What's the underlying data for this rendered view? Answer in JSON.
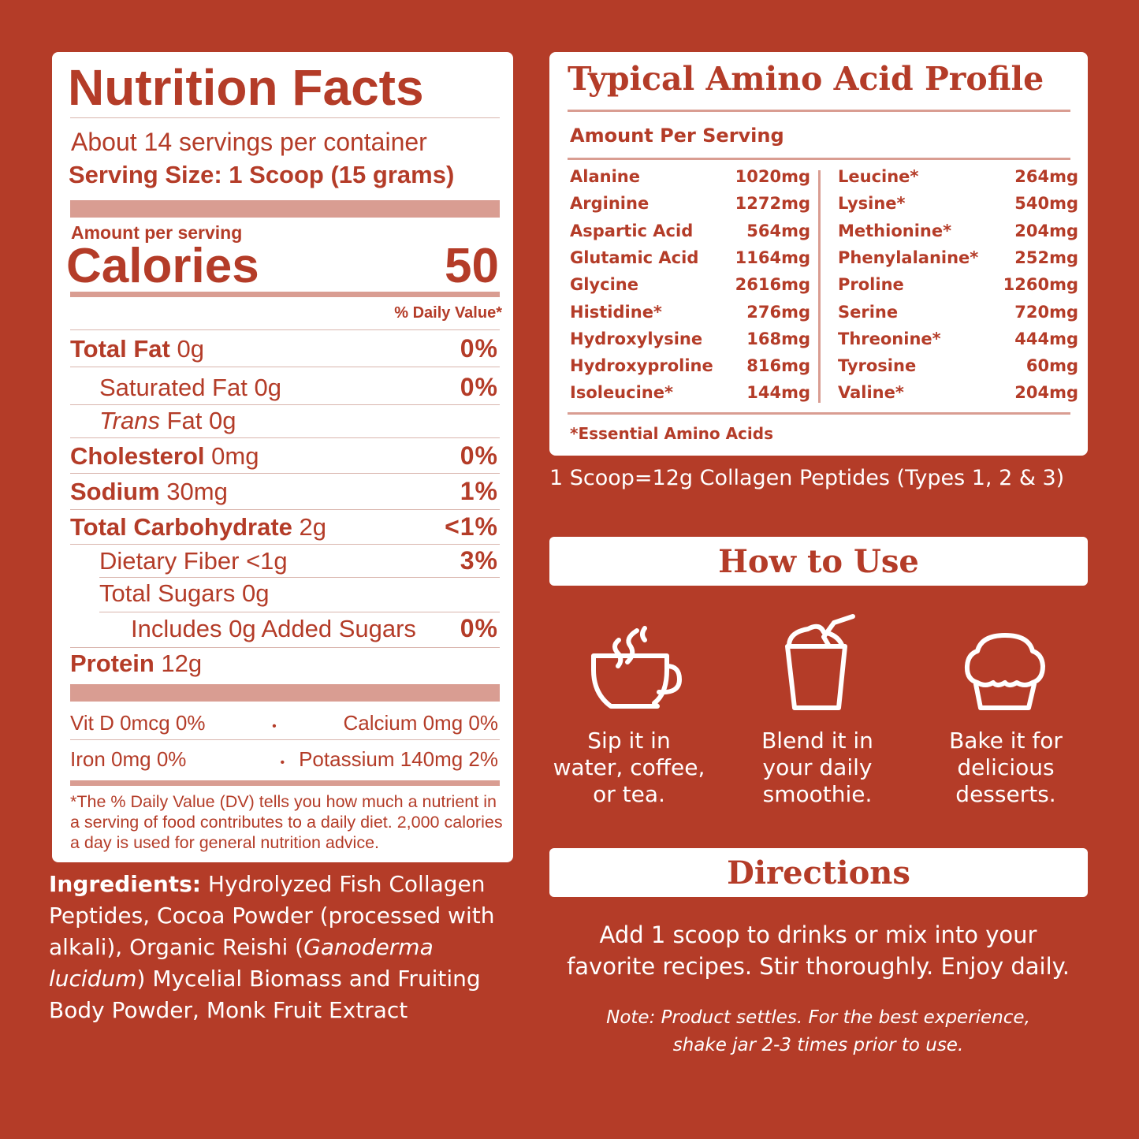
{
  "nutrition": {
    "title": "Nutrition Facts",
    "servings": "About 14 servings per container",
    "serving_size": "Serving Size: 1 Scoop (15 grams)",
    "amount_per_serving": "Amount per serving",
    "calories_label": "Calories",
    "calories_value": "50",
    "dv_header": "% Daily Value*",
    "rows": [
      {
        "label": "Total Fat",
        "amount": "0g",
        "dv": "0%"
      },
      {
        "label": "Saturated Fat",
        "amount": "0g",
        "dv": "0%"
      },
      {
        "label": "Trans",
        "label2": "Fat",
        "amount": "0g",
        "dv": ""
      },
      {
        "label": "Cholesterol",
        "amount": "0mg",
        "dv": "0%"
      },
      {
        "label": "Sodium",
        "amount": "30mg",
        "dv": "1%"
      },
      {
        "label": "Total Carbohydrate",
        "amount": "2g",
        "dv": "<1%"
      },
      {
        "label": "Dietary Fiber",
        "amount": "<1g",
        "dv": "3%"
      },
      {
        "label": "Total Sugars",
        "amount": "0g",
        "dv": ""
      },
      {
        "label": "Includes 0g Added Sugars",
        "amount": "",
        "dv": "0%"
      },
      {
        "label": "Protein",
        "amount": "12g",
        "dv": ""
      }
    ],
    "vitamins": [
      [
        "Vit D 0mcg 0%",
        "Calcium 0mg 0%"
      ],
      [
        "Iron 0mg 0%",
        "Potassium 140mg 2%"
      ]
    ],
    "bullet": "•",
    "footnote": "*The % Daily Value (DV) tells you how much a nutrient in a serving of food contributes to a daily diet. 2,000 calories a day is used for general nutrition advice."
  },
  "ingredients": {
    "label": "Ingredients:",
    "text1": " Hydrolyzed Fish Collagen Peptides, Cocoa Powder (processed with alkali), Organic Reishi (",
    "italic": "Ganoderma lucidum",
    "text2": ") Mycelial Biomass and Fruiting Body Powder, Monk Fruit Extract"
  },
  "amino": {
    "title": "Typical Amino Acid Profile",
    "subtitle": "Amount Per Serving",
    "left": [
      [
        "Alanine",
        "1020mg"
      ],
      [
        "Arginine",
        "1272mg"
      ],
      [
        "Aspartic Acid",
        "564mg"
      ],
      [
        "Glutamic Acid",
        "1164mg"
      ],
      [
        "Glycine",
        "2616mg"
      ],
      [
        "Histidine*",
        "276mg"
      ],
      [
        "Hydroxylysine",
        "168mg"
      ],
      [
        "Hydroxyproline",
        "816mg"
      ],
      [
        "Isoleucine*",
        "144mg"
      ]
    ],
    "right": [
      [
        "Leucine*",
        "264mg"
      ],
      [
        "Lysine*",
        "540mg"
      ],
      [
        "Methionine*",
        "204mg"
      ],
      [
        "Phenylalanine*",
        "252mg"
      ],
      [
        "Proline",
        "1260mg"
      ],
      [
        "Serine",
        "720mg"
      ],
      [
        "Threonine*",
        "444mg"
      ],
      [
        "Tyrosine",
        "60mg"
      ],
      [
        "Valine*",
        "204mg"
      ]
    ],
    "footnote": "*Essential Amino Acids"
  },
  "scoop_note": "1 Scoop=12g Collagen Peptides (Types 1, 2 & 3)",
  "how_to_use": {
    "title": "How to Use",
    "items": [
      {
        "icon": "coffee-cup-icon",
        "lines": [
          "Sip it in",
          "water, coffee,",
          "or tea."
        ]
      },
      {
        "icon": "smoothie-cup-icon",
        "lines": [
          "Blend it in",
          "your daily",
          "smoothie."
        ]
      },
      {
        "icon": "muffin-icon",
        "lines": [
          "Bake it for",
          "delicious",
          "desserts."
        ]
      }
    ]
  },
  "directions": {
    "title": "Directions",
    "lines": [
      "Add 1 scoop to drinks or mix into your",
      "favorite recipes. Stir thoroughly. Enjoy daily."
    ],
    "note": [
      "Note: Product settles. For the best experience,",
      "shake jar 2-3 times prior to use."
    ]
  },
  "colors": {
    "background": "#b43c28",
    "panel": "#ffffff",
    "bar": "#d99d92"
  }
}
